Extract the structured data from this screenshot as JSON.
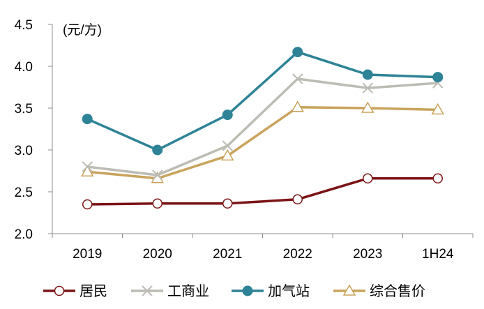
{
  "chart_data": {
    "type": "line",
    "title": "",
    "unit_label": "(元/方)",
    "xlabel": "",
    "ylabel": "",
    "categories": [
      "2019",
      "2020",
      "2021",
      "2022",
      "2023",
      "1H24"
    ],
    "ylim": [
      2.0,
      4.5
    ],
    "yticks": [
      "2.0",
      "2.5",
      "3.0",
      "3.5",
      "4.0",
      "4.5"
    ],
    "ytick_values": [
      2.0,
      2.5,
      3.0,
      3.5,
      4.0,
      4.5
    ],
    "grid": false,
    "legend_position": "bottom",
    "series": [
      {
        "name": "居民",
        "values": [
          2.35,
          2.36,
          2.36,
          2.41,
          2.66,
          2.66
        ],
        "color": "#7b1416",
        "marker": "circle-open"
      },
      {
        "name": "工商业",
        "values": [
          2.8,
          2.7,
          3.05,
          3.85,
          3.74,
          3.8
        ],
        "color": "#bdbcb4",
        "marker": "x"
      },
      {
        "name": "加气站",
        "values": [
          3.37,
          3.0,
          3.42,
          4.17,
          3.9,
          3.87
        ],
        "color": "#2e8396",
        "marker": "circle-filled"
      },
      {
        "name": "综合售价",
        "values": [
          2.74,
          2.66,
          2.93,
          3.51,
          3.5,
          3.48
        ],
        "color": "#c9a35c",
        "marker": "triangle-open"
      }
    ]
  }
}
